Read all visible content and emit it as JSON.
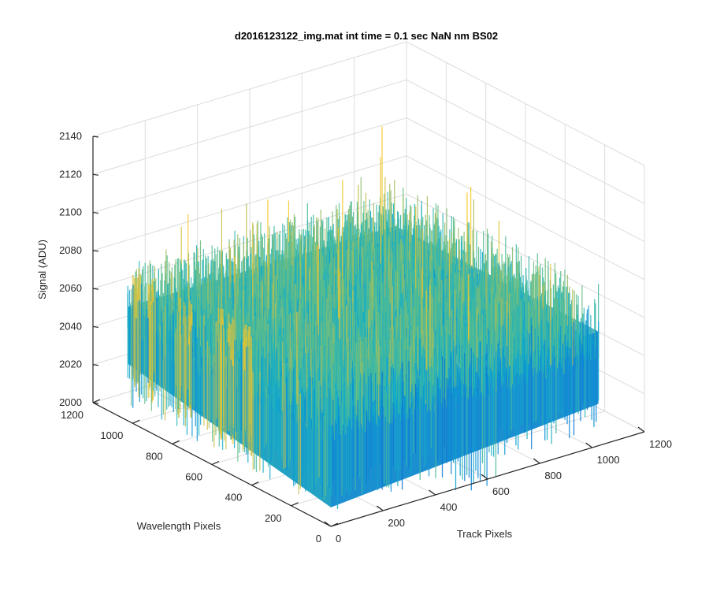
{
  "chart_data": {
    "type": "surface",
    "title": "d2016123122_img.mat int time = 0.1 sec  NaN nm BS02",
    "xlabel": "Track Pixels",
    "ylabel": "Wavelength Pixels",
    "zlabel": "Signal (ADU)",
    "xlim": [
      0,
      1200
    ],
    "ylim": [
      0,
      1200
    ],
    "zlim": [
      2000,
      2140
    ],
    "x_ticks": [
      "0",
      "200",
      "400",
      "600",
      "800",
      "1000",
      "1200"
    ],
    "y_ticks": [
      "0",
      "200",
      "400",
      "600",
      "800",
      "1000",
      "1200"
    ],
    "z_ticks": [
      "2000",
      "2020",
      "2040",
      "2060",
      "2080",
      "2100",
      "2120",
      "2140"
    ],
    "grid": true,
    "colormap": "parula",
    "colors": {
      "low": "#0072BD",
      "mid": "#20A8C8",
      "high": "#EDB120",
      "grid": "#dcdcdc",
      "axis": "#262626"
    },
    "surface": {
      "x_range": [
        0,
        1024
      ],
      "y_range": [
        0,
        1024
      ],
      "z_range": [
        2000,
        2128
      ],
      "z_typical": 2060
    }
  }
}
